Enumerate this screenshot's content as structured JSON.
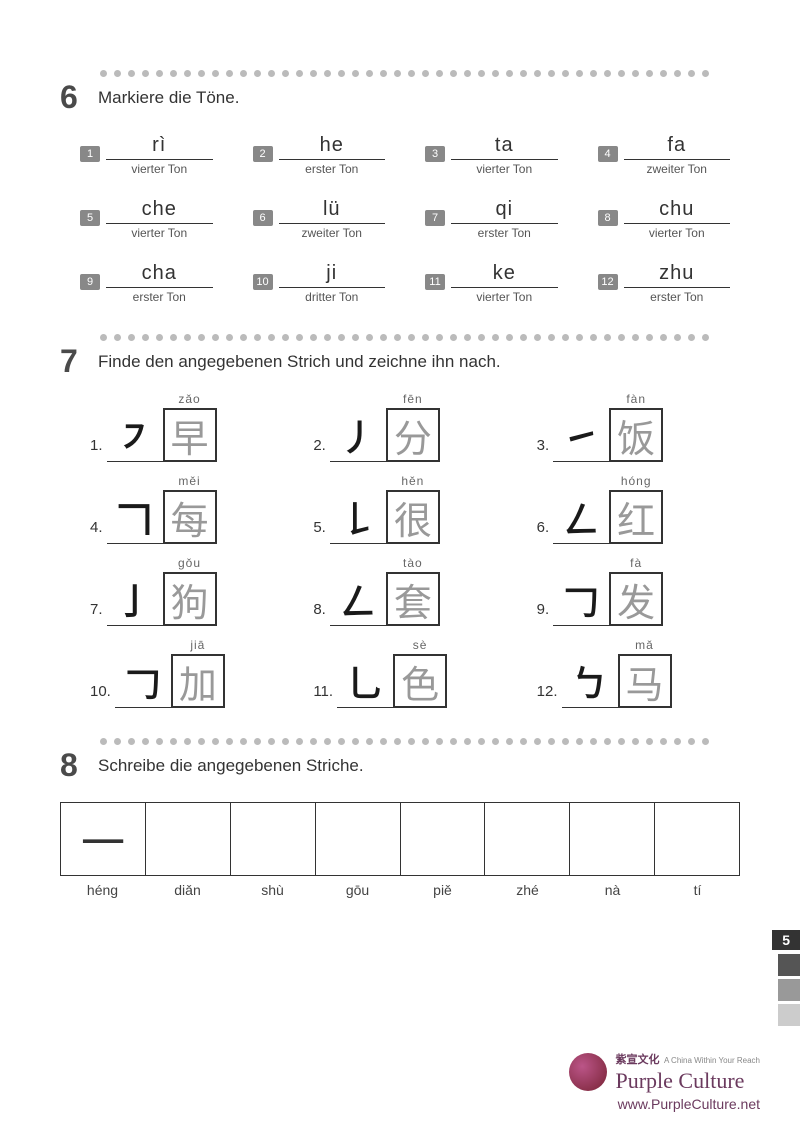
{
  "page_number": "5",
  "dot_color": "#bbbbbb",
  "side_squares": [
    "#555555",
    "#999999",
    "#cccccc"
  ],
  "section6": {
    "number": "6",
    "title": "Markiere die Töne.",
    "items": [
      {
        "n": "1",
        "pinyin": "rì",
        "tone": "vierter Ton"
      },
      {
        "n": "2",
        "pinyin": "he",
        "tone": "erster Ton"
      },
      {
        "n": "3",
        "pinyin": "ta",
        "tone": "vierter Ton"
      },
      {
        "n": "4",
        "pinyin": "fa",
        "tone": "zweiter Ton"
      },
      {
        "n": "5",
        "pinyin": "che",
        "tone": "vierter Ton"
      },
      {
        "n": "6",
        "pinyin": "lü",
        "tone": "zweiter Ton"
      },
      {
        "n": "7",
        "pinyin": "qi",
        "tone": "erster Ton"
      },
      {
        "n": "8",
        "pinyin": "chu",
        "tone": "vierter Ton"
      },
      {
        "n": "9",
        "pinyin": "cha",
        "tone": "erster Ton"
      },
      {
        "n": "10",
        "pinyin": "ji",
        "tone": "dritter Ton"
      },
      {
        "n": "11",
        "pinyin": "ke",
        "tone": "vierter Ton"
      },
      {
        "n": "12",
        "pinyin": "zhu",
        "tone": "erster Ton"
      }
    ]
  },
  "section7": {
    "number": "7",
    "title": "Finde den angegebenen Strich und zeichne ihn nach.",
    "items": [
      {
        "n": "1.",
        "stroke": "㇇",
        "pinyin": "zǎo",
        "char": "早"
      },
      {
        "n": "2.",
        "stroke": "丿",
        "pinyin": "fēn",
        "char": "分"
      },
      {
        "n": "3.",
        "stroke": "㇀",
        "pinyin": "fàn",
        "char": "饭"
      },
      {
        "n": "4.",
        "stroke": "𠃍",
        "pinyin": "měi",
        "char": "每"
      },
      {
        "n": "5.",
        "stroke": "𠄌",
        "pinyin": "hěn",
        "char": "很"
      },
      {
        "n": "6.",
        "stroke": "ㄥ",
        "pinyin": "hóng",
        "char": "红"
      },
      {
        "n": "7.",
        "stroke": "亅",
        "pinyin": "gǒu",
        "char": "狗"
      },
      {
        "n": "8.",
        "stroke": "ㄥ",
        "pinyin": "tào",
        "char": "套"
      },
      {
        "n": "9.",
        "stroke": "𠃌",
        "pinyin": "fà",
        "char": "发"
      },
      {
        "n": "10.",
        "stroke": "𠃌",
        "pinyin": "jiā",
        "char": "加"
      },
      {
        "n": "11.",
        "stroke": "乚",
        "pinyin": "sè",
        "char": "色"
      },
      {
        "n": "12.",
        "stroke": "ㄅ",
        "pinyin": "mǎ",
        "char": "马"
      }
    ]
  },
  "section8": {
    "number": "8",
    "title": "Schreibe die angegebenen Striche.",
    "cells": [
      "一",
      "",
      "",
      "",
      "",
      "",
      "",
      ""
    ],
    "labels": [
      "héng",
      "diǎn",
      "shù",
      "gōu",
      "piě",
      "zhé",
      "nà",
      "tí"
    ]
  },
  "footer": {
    "cn": "紫宣文化",
    "tag": "A China Within Your Reach",
    "en": "Purple Culture",
    "url": "www.PurpleCulture.net"
  }
}
